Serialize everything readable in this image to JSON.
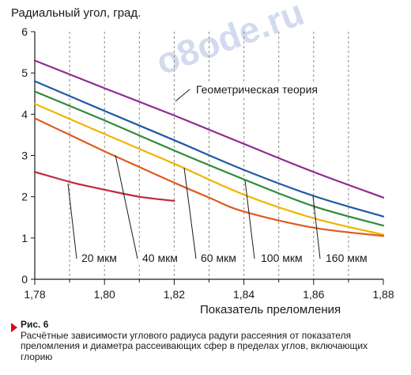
{
  "chart_data": {
    "type": "line",
    "ylabel": "Радиальный угол, град.",
    "xlabel": "Показатель преломления",
    "xlim": [
      1.78,
      1.88
    ],
    "ylim": [
      0,
      6
    ],
    "x_ticks": [
      "1,78",
      "1,80",
      "1,82",
      "1,84",
      "1,86",
      "1,88"
    ],
    "y_ticks": [
      "0",
      "1",
      "2",
      "3",
      "4",
      "5",
      "6"
    ],
    "grid": "vertical dashed",
    "series": [
      {
        "name": "Геометрическая теория",
        "color": "#8e2d8c",
        "x": [
          1.78,
          1.8,
          1.82,
          1.84,
          1.86,
          1.88
        ],
        "y": [
          5.3,
          4.63,
          3.97,
          3.28,
          2.6,
          1.98
        ]
      },
      {
        "name": "160 мкм",
        "color": "#1e5aa8",
        "x": [
          1.78,
          1.8,
          1.82,
          1.84,
          1.86,
          1.88
        ],
        "y": [
          4.8,
          4.08,
          3.37,
          2.65,
          2.02,
          1.52
        ]
      },
      {
        "name": "100 мкм",
        "color": "#2e8b3c",
        "x": [
          1.78,
          1.8,
          1.82,
          1.84,
          1.86,
          1.88
        ],
        "y": [
          4.55,
          3.85,
          3.12,
          2.42,
          1.77,
          1.3
        ]
      },
      {
        "name": "60 мкм",
        "color": "#f0b400",
        "x": [
          1.78,
          1.8,
          1.82,
          1.84,
          1.86,
          1.88
        ],
        "y": [
          4.25,
          3.52,
          2.8,
          2.05,
          1.48,
          1.08
        ]
      },
      {
        "name": "40 мкм",
        "color": "#e05a1e",
        "x": [
          1.78,
          1.79,
          1.8,
          1.81,
          1.82,
          1.83,
          1.84,
          1.86,
          1.88
        ],
        "y": [
          3.9,
          3.5,
          3.1,
          2.72,
          2.34,
          1.98,
          1.64,
          1.25,
          1.05
        ]
      },
      {
        "name": "20 мкм",
        "color": "#c0283c",
        "x": [
          1.78,
          1.785,
          1.79,
          1.795,
          1.8,
          1.81,
          1.82
        ],
        "y": [
          2.6,
          2.48,
          2.36,
          2.26,
          2.17,
          2.0,
          1.9
        ]
      }
    ],
    "annotations": [
      "Геометрическая теория",
      "20 мкм",
      "40 мкм",
      "60 мкм",
      "100 мкм",
      "160 мкм"
    ]
  },
  "watermark": "o8ode.ru",
  "caption": {
    "label": "Рис. 6",
    "text": "Расчётные зависимости углового радиуса радуги рассеяния от показателя преломления и диаметра рассеивающих сфер в пределах углов, включающих глорию"
  }
}
